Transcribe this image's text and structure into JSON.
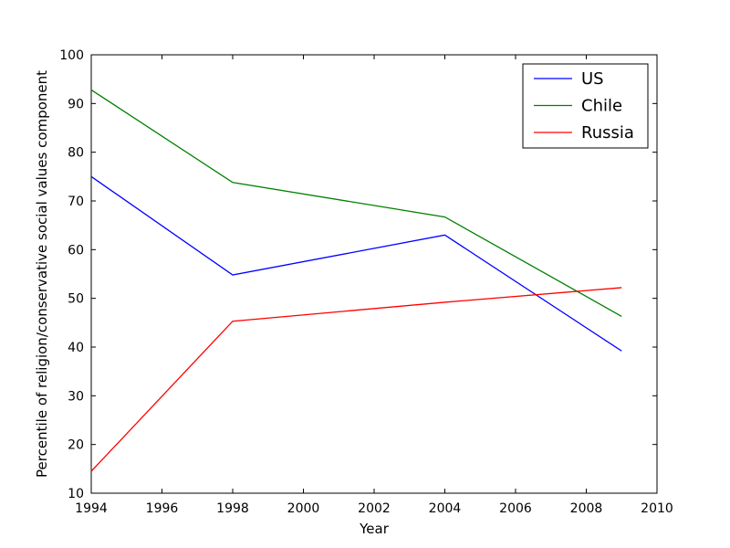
{
  "chart_data": {
    "type": "line",
    "title": "",
    "xlabel": "Year",
    "ylabel": "Percentile of religion/conservative social values component",
    "xlim": [
      1994,
      2010
    ],
    "ylim": [
      10,
      100
    ],
    "xticks": [
      1994,
      1996,
      1998,
      2000,
      2002,
      2004,
      2006,
      2008,
      2010
    ],
    "yticks": [
      10,
      20,
      30,
      40,
      50,
      60,
      70,
      80,
      90,
      100
    ],
    "x": [
      1994,
      1998,
      2004,
      2009
    ],
    "series": [
      {
        "name": "US",
        "color": "#0000ff",
        "values": [
          75,
          54.8,
          63,
          39.2
        ]
      },
      {
        "name": "Chile",
        "color": "#008000",
        "values": [
          92.8,
          73.8,
          66.7,
          46.3
        ]
      },
      {
        "name": "Russia",
        "color": "#ff0000",
        "values": [
          14.5,
          45.3,
          49.2,
          52.2
        ]
      }
    ],
    "grid": false,
    "legend_position": "top-right"
  }
}
